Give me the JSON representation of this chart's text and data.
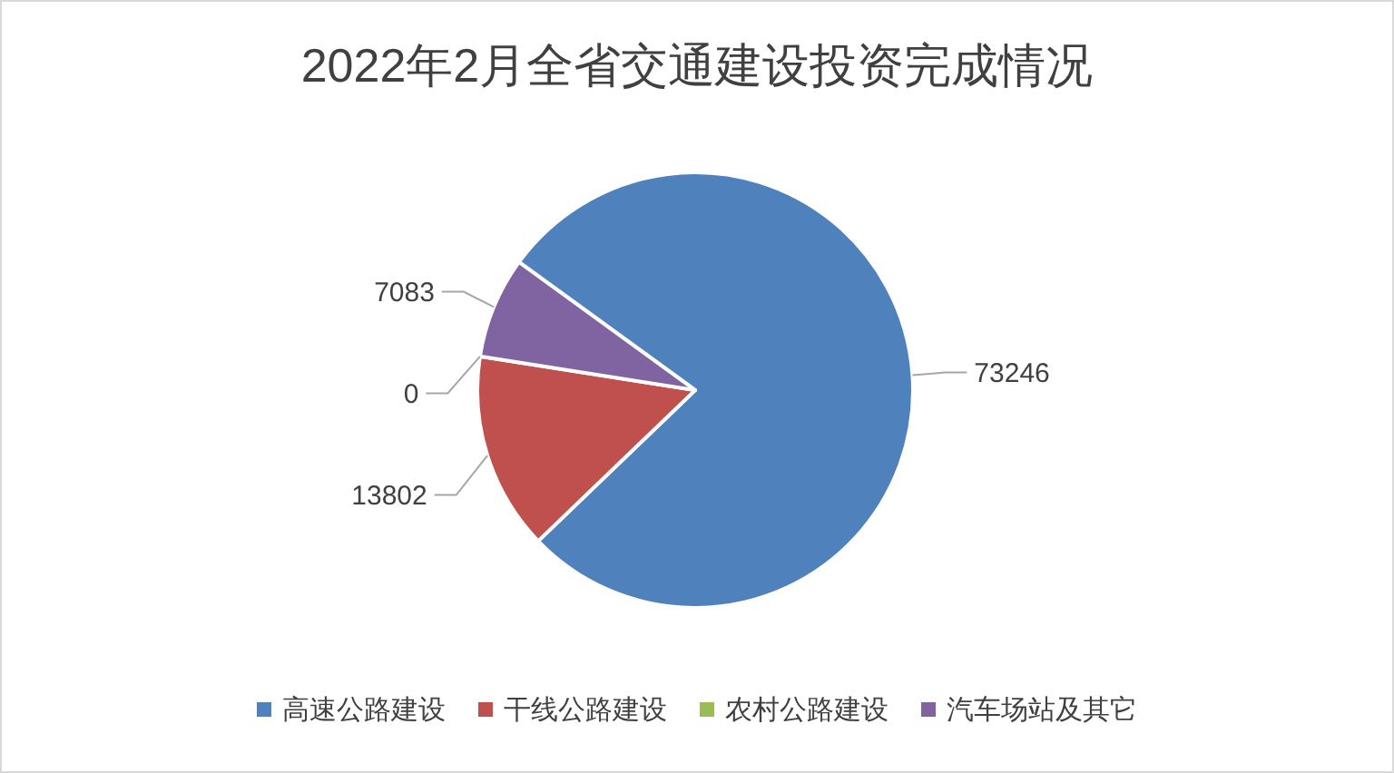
{
  "chart_data": {
    "type": "pie",
    "title": "2022年2月全省交通建设投资完成情况",
    "categories": [
      "高速公路建设",
      "干线公路建设",
      "农村公路建设",
      "汽车场站及其它"
    ],
    "values": [
      73246,
      13802,
      0,
      7083
    ],
    "colors": [
      "#4f81bd",
      "#c0504d",
      "#9bbb59",
      "#8064a2"
    ],
    "value_labels": [
      "73246",
      "13802",
      "0",
      "7083"
    ],
    "legend": "bottom"
  }
}
